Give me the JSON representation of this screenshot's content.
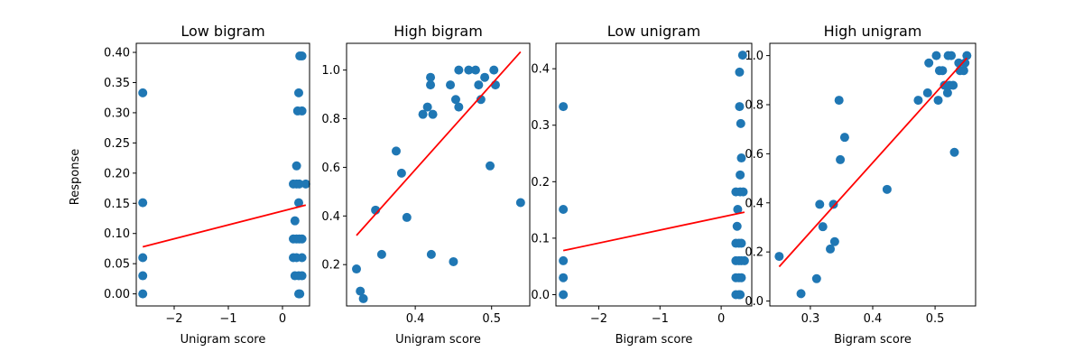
{
  "figure": {
    "ylabel": "Response"
  },
  "chart_data": [
    {
      "type": "scatter",
      "title": "Low bigram",
      "xlabel": "Unigram score",
      "xlim": [
        -2.7,
        0.5
      ],
      "ylim": [
        -0.02,
        0.415
      ],
      "xticks": [
        -2,
        -1,
        0
      ],
      "xtick_labels": [
        "−2",
        "−1",
        "0"
      ],
      "yticks": [
        0,
        0.05,
        0.1,
        0.15,
        0.2,
        0.25,
        0.3,
        0.35,
        0.4
      ],
      "ytick_labels": [
        "0.00",
        "0.05",
        "0.10",
        "0.15",
        "0.20",
        "0.25",
        "0.30",
        "0.35",
        "0.40"
      ],
      "marker_color": "#1f77b4",
      "points": [
        {
          "x": -2.58,
          "y": 0.333
        },
        {
          "x": -2.58,
          "y": 0.151
        },
        {
          "x": -2.58,
          "y": 0.06
        },
        {
          "x": -2.58,
          "y": 0.03
        },
        {
          "x": -2.58,
          "y": 0.0
        },
        {
          "x": 0.32,
          "y": 0.394
        },
        {
          "x": 0.36,
          "y": 0.394
        },
        {
          "x": 0.3,
          "y": 0.333
        },
        {
          "x": 0.28,
          "y": 0.303
        },
        {
          "x": 0.36,
          "y": 0.303
        },
        {
          "x": 0.26,
          "y": 0.212
        },
        {
          "x": 0.2,
          "y": 0.182
        },
        {
          "x": 0.26,
          "y": 0.182
        },
        {
          "x": 0.31,
          "y": 0.182
        },
        {
          "x": 0.43,
          "y": 0.182
        },
        {
          "x": 0.3,
          "y": 0.151
        },
        {
          "x": 0.23,
          "y": 0.121
        },
        {
          "x": 0.2,
          "y": 0.091
        },
        {
          "x": 0.26,
          "y": 0.091
        },
        {
          "x": 0.31,
          "y": 0.091
        },
        {
          "x": 0.36,
          "y": 0.091
        },
        {
          "x": 0.2,
          "y": 0.06
        },
        {
          "x": 0.26,
          "y": 0.06
        },
        {
          "x": 0.36,
          "y": 0.06
        },
        {
          "x": 0.23,
          "y": 0.03
        },
        {
          "x": 0.3,
          "y": 0.03
        },
        {
          "x": 0.36,
          "y": 0.03
        },
        {
          "x": 0.3,
          "y": 0.0
        },
        {
          "x": 0.32,
          "y": 0.0
        }
      ],
      "fit": {
        "x": [
          -2.58,
          0.43
        ],
        "y": [
          0.078,
          0.147
        ],
        "color": "#ff0000"
      }
    },
    {
      "type": "scatter",
      "title": "High bigram",
      "xlabel": "Unigram score",
      "xlim": [
        0.31,
        0.55
      ],
      "ylim": [
        0.03,
        1.11
      ],
      "xticks": [
        0.4,
        0.5
      ],
      "xtick_labels": [
        "0.4",
        "0.5"
      ],
      "yticks": [
        0.2,
        0.4,
        0.6,
        0.8,
        1.0
      ],
      "ytick_labels": [
        "0.2",
        "0.4",
        "0.6",
        "0.8",
        "1.0"
      ],
      "marker_color": "#1f77b4",
      "points": [
        {
          "x": 0.323,
          "y": 0.182
        },
        {
          "x": 0.328,
          "y": 0.091
        },
        {
          "x": 0.332,
          "y": 0.06
        },
        {
          "x": 0.348,
          "y": 0.424
        },
        {
          "x": 0.356,
          "y": 0.242
        },
        {
          "x": 0.375,
          "y": 0.667
        },
        {
          "x": 0.382,
          "y": 0.576
        },
        {
          "x": 0.389,
          "y": 0.394
        },
        {
          "x": 0.41,
          "y": 0.818
        },
        {
          "x": 0.416,
          "y": 0.848
        },
        {
          "x": 0.42,
          "y": 0.97
        },
        {
          "x": 0.42,
          "y": 0.939
        },
        {
          "x": 0.423,
          "y": 0.818
        },
        {
          "x": 0.421,
          "y": 0.242
        },
        {
          "x": 0.446,
          "y": 0.939
        },
        {
          "x": 0.45,
          "y": 0.212
        },
        {
          "x": 0.453,
          "y": 0.879
        },
        {
          "x": 0.457,
          "y": 0.848
        },
        {
          "x": 0.457,
          "y": 1.0
        },
        {
          "x": 0.47,
          "y": 1.0
        },
        {
          "x": 0.479,
          "y": 1.0
        },
        {
          "x": 0.483,
          "y": 0.939
        },
        {
          "x": 0.486,
          "y": 0.879
        },
        {
          "x": 0.491,
          "y": 0.97
        },
        {
          "x": 0.498,
          "y": 0.606
        },
        {
          "x": 0.503,
          "y": 1.0
        },
        {
          "x": 0.505,
          "y": 0.939
        },
        {
          "x": 0.538,
          "y": 0.455
        }
      ],
      "fit": {
        "x": [
          0.323,
          0.538
        ],
        "y": [
          0.32,
          1.075
        ],
        "color": "#ff0000"
      }
    },
    {
      "type": "scatter",
      "title": "Low unigram",
      "xlabel": "Bigram score",
      "xlim": [
        -2.7,
        0.5
      ],
      "ylim": [
        -0.02,
        0.445
      ],
      "xticks": [
        -2,
        -1,
        0
      ],
      "xtick_labels": [
        "−2",
        "−1",
        "0"
      ],
      "yticks": [
        0,
        0.1,
        0.2,
        0.3,
        0.4
      ],
      "ytick_labels": [
        "0.0",
        "0.1",
        "0.2",
        "0.3",
        "0.4"
      ],
      "marker_color": "#1f77b4",
      "points": [
        {
          "x": -2.58,
          "y": 0.333
        },
        {
          "x": -2.58,
          "y": 0.151
        },
        {
          "x": -2.58,
          "y": 0.06
        },
        {
          "x": -2.58,
          "y": 0.03
        },
        {
          "x": -2.58,
          "y": 0.0
        },
        {
          "x": 0.35,
          "y": 0.424
        },
        {
          "x": 0.3,
          "y": 0.394
        },
        {
          "x": 0.3,
          "y": 0.333
        },
        {
          "x": 0.32,
          "y": 0.303
        },
        {
          "x": 0.33,
          "y": 0.242
        },
        {
          "x": 0.31,
          "y": 0.212
        },
        {
          "x": 0.24,
          "y": 0.182
        },
        {
          "x": 0.31,
          "y": 0.182
        },
        {
          "x": 0.36,
          "y": 0.182
        },
        {
          "x": 0.27,
          "y": 0.151
        },
        {
          "x": 0.26,
          "y": 0.121
        },
        {
          "x": 0.24,
          "y": 0.091
        },
        {
          "x": 0.29,
          "y": 0.091
        },
        {
          "x": 0.33,
          "y": 0.091
        },
        {
          "x": 0.24,
          "y": 0.06
        },
        {
          "x": 0.29,
          "y": 0.06
        },
        {
          "x": 0.33,
          "y": 0.06
        },
        {
          "x": 0.38,
          "y": 0.06
        },
        {
          "x": 0.24,
          "y": 0.03
        },
        {
          "x": 0.29,
          "y": 0.03
        },
        {
          "x": 0.33,
          "y": 0.03
        },
        {
          "x": 0.24,
          "y": 0.0
        },
        {
          "x": 0.29,
          "y": 0.0
        },
        {
          "x": 0.31,
          "y": 0.0
        }
      ],
      "fit": {
        "x": [
          -2.58,
          0.38
        ],
        "y": [
          0.078,
          0.146
        ],
        "color": "#ff0000"
      }
    },
    {
      "type": "scatter",
      "title": "High unigram",
      "xlabel": "Bigram score",
      "xlim": [
        0.235,
        0.565
      ],
      "ylim": [
        -0.02,
        1.05
      ],
      "xticks": [
        0.3,
        0.4,
        0.5
      ],
      "xtick_labels": [
        "0.3",
        "0.4",
        "0.5"
      ],
      "yticks": [
        0,
        0.2,
        0.4,
        0.6,
        0.8,
        1.0
      ],
      "ytick_labels": [
        "0.0",
        "0.2",
        "0.4",
        "0.6",
        "0.8",
        "1.0"
      ],
      "marker_color": "#1f77b4",
      "points": [
        {
          "x": 0.25,
          "y": 0.182
        },
        {
          "x": 0.285,
          "y": 0.03
        },
        {
          "x": 0.31,
          "y": 0.091
        },
        {
          "x": 0.315,
          "y": 0.394
        },
        {
          "x": 0.32,
          "y": 0.303
        },
        {
          "x": 0.332,
          "y": 0.212
        },
        {
          "x": 0.337,
          "y": 0.394
        },
        {
          "x": 0.339,
          "y": 0.242
        },
        {
          "x": 0.346,
          "y": 0.818
        },
        {
          "x": 0.348,
          "y": 0.576
        },
        {
          "x": 0.355,
          "y": 0.667
        },
        {
          "x": 0.423,
          "y": 0.455
        },
        {
          "x": 0.473,
          "y": 0.818
        },
        {
          "x": 0.488,
          "y": 0.848
        },
        {
          "x": 0.49,
          "y": 0.97
        },
        {
          "x": 0.502,
          "y": 1.0
        },
        {
          "x": 0.505,
          "y": 0.818
        },
        {
          "x": 0.507,
          "y": 0.939
        },
        {
          "x": 0.512,
          "y": 0.939
        },
        {
          "x": 0.515,
          "y": 0.879
        },
        {
          "x": 0.52,
          "y": 0.848
        },
        {
          "x": 0.521,
          "y": 1.0
        },
        {
          "x": 0.523,
          "y": 0.879
        },
        {
          "x": 0.526,
          "y": 1.0
        },
        {
          "x": 0.529,
          "y": 0.879
        },
        {
          "x": 0.531,
          "y": 0.606
        },
        {
          "x": 0.538,
          "y": 0.97
        },
        {
          "x": 0.54,
          "y": 0.939
        },
        {
          "x": 0.546,
          "y": 0.939
        },
        {
          "x": 0.548,
          "y": 0.97
        },
        {
          "x": 0.551,
          "y": 1.0
        }
      ],
      "fit": {
        "x": [
          0.25,
          0.551
        ],
        "y": [
          0.14,
          0.99
        ],
        "color": "#ff0000"
      }
    }
  ]
}
